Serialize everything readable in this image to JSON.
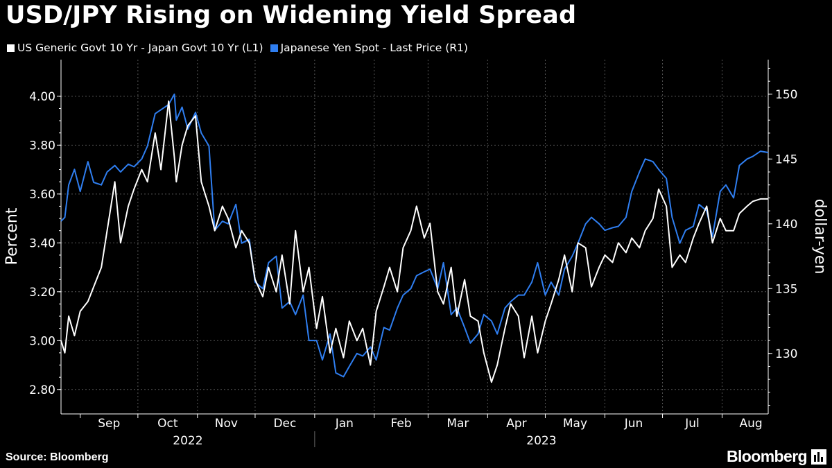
{
  "header": {
    "title": "USD/JPY Rising on Widening Yield Spread"
  },
  "footer": {
    "source": "Source: Bloomberg",
    "brand": "Bloomberg",
    "brand_icon": "bloomberg-bars-icon"
  },
  "colors": {
    "background": "#000000",
    "series_spread": "#ffffff",
    "series_yen": "#2f7ef0",
    "grid": "#555555"
  },
  "chart_data": {
    "type": "line",
    "title": "USD/JPY Rising on Widening Yield Spread",
    "ylabel_left": "Percent",
    "ylabel_right": "dollar-yen",
    "ylim_left": [
      2.7,
      4.15
    ],
    "ylim_right": [
      125.3333,
      152.6667
    ],
    "yticks_left": [
      "2.80",
      "3.00",
      "3.20",
      "3.40",
      "3.60",
      "3.80",
      "4.00"
    ],
    "yticks_right": [
      "130",
      "135",
      "140",
      "145",
      "150"
    ],
    "months": [
      "Sep",
      "Oct",
      "Nov",
      "Dec",
      "Jan",
      "Feb",
      "Mar",
      "Apr",
      "May",
      "Jun",
      "Jul",
      "Aug"
    ],
    "years": [
      "2022",
      "2023"
    ],
    "legend": [
      {
        "name": "US Generic Govt 10 Yr - Japan Govt 10 Yr (L1)",
        "color": "#ffffff"
      },
      {
        "name": "Japanese Yen Spot - Last Price (R1)",
        "color": "#2f7ef0"
      }
    ],
    "x_start": "2022-08-22",
    "x_end": "2023-08-25",
    "series": [
      {
        "name": "US Generic Govt 10 Yr - Japan Govt 10 Yr (L1)",
        "axis": "left",
        "color": "#ffffff",
        "dates": [
          "2022-08-22",
          "2022-08-24",
          "2022-08-26",
          "2022-08-29",
          "2022-09-01",
          "2022-09-05",
          "2022-09-08",
          "2022-09-12",
          "2022-09-15",
          "2022-09-19",
          "2022-09-22",
          "2022-09-26",
          "2022-09-29",
          "2022-10-03",
          "2022-10-06",
          "2022-10-10",
          "2022-10-13",
          "2022-10-17",
          "2022-10-20",
          "2022-10-21",
          "2022-10-24",
          "2022-10-27",
          "2022-10-31",
          "2022-11-03",
          "2022-11-07",
          "2022-11-10",
          "2022-11-14",
          "2022-11-17",
          "2022-11-21",
          "2022-11-24",
          "2022-11-28",
          "2022-12-01",
          "2022-12-05",
          "2022-12-08",
          "2022-12-12",
          "2022-12-15",
          "2022-12-19",
          "2022-12-22",
          "2022-12-26",
          "2022-12-29",
          "2023-01-02",
          "2023-01-05",
          "2023-01-09",
          "2023-01-12",
          "2023-01-16",
          "2023-01-19",
          "2023-01-23",
          "2023-01-26",
          "2023-01-30",
          "2023-02-02",
          "2023-02-06",
          "2023-02-09",
          "2023-02-13",
          "2023-02-16",
          "2023-02-20",
          "2023-02-23",
          "2023-02-27",
          "2023-03-02",
          "2023-03-06",
          "2023-03-09",
          "2023-03-13",
          "2023-03-16",
          "2023-03-20",
          "2023-03-23",
          "2023-03-27",
          "2023-03-30",
          "2023-04-03",
          "2023-04-06",
          "2023-04-10",
          "2023-04-13",
          "2023-04-17",
          "2023-04-20",
          "2023-04-24",
          "2023-04-27",
          "2023-05-01",
          "2023-05-04",
          "2023-05-08",
          "2023-05-11",
          "2023-05-15",
          "2023-05-18",
          "2023-05-22",
          "2023-05-25",
          "2023-05-29",
          "2023-06-01",
          "2023-06-05",
          "2023-06-08",
          "2023-06-12",
          "2023-06-15",
          "2023-06-19",
          "2023-06-22",
          "2023-06-26",
          "2023-06-29",
          "2023-07-03",
          "2023-07-06",
          "2023-07-10",
          "2023-07-13",
          "2023-07-17",
          "2023-07-20",
          "2023-07-24",
          "2023-07-27",
          "2023-07-31",
          "2023-08-03",
          "2023-08-07",
          "2023-08-10",
          "2023-08-14",
          "2023-08-17",
          "2023-08-21",
          "2023-08-25"
        ],
        "values": [
          3.0,
          2.95,
          3.1,
          3.02,
          3.12,
          3.16,
          3.22,
          3.3,
          3.45,
          3.65,
          3.4,
          3.55,
          3.62,
          3.7,
          3.65,
          3.85,
          3.7,
          3.98,
          3.75,
          3.65,
          3.8,
          3.88,
          3.92,
          3.65,
          3.55,
          3.45,
          3.55,
          3.5,
          3.38,
          3.45,
          3.4,
          3.25,
          3.18,
          3.3,
          3.2,
          3.35,
          3.15,
          3.45,
          3.2,
          3.3,
          3.05,
          3.18,
          2.95,
          3.05,
          2.93,
          3.08,
          3.0,
          3.05,
          2.9,
          3.12,
          3.22,
          3.3,
          3.2,
          3.38,
          3.45,
          3.55,
          3.42,
          3.48,
          3.2,
          3.15,
          3.3,
          3.1,
          3.25,
          3.1,
          3.08,
          2.95,
          2.83,
          2.9,
          3.05,
          3.15,
          3.1,
          2.93,
          3.1,
          2.95,
          3.08,
          3.15,
          3.25,
          3.35,
          3.2,
          3.4,
          3.38,
          3.22,
          3.3,
          3.35,
          3.32,
          3.4,
          3.36,
          3.42,
          3.38,
          3.45,
          3.5,
          3.62,
          3.55,
          3.3,
          3.35,
          3.32,
          3.42,
          3.48,
          3.55,
          3.4,
          3.5,
          3.45,
          3.45,
          3.52,
          3.55,
          3.57,
          3.58,
          3.58
        ]
      },
      {
        "name": "Japanese Yen Spot - Last Price (R1)",
        "axis": "right",
        "color": "#2f7ef0",
        "dates": [
          "2022-08-22",
          "2022-08-24",
          "2022-08-26",
          "2022-08-29",
          "2022-09-01",
          "2022-09-05",
          "2022-09-08",
          "2022-09-12",
          "2022-09-15",
          "2022-09-19",
          "2022-09-22",
          "2022-09-26",
          "2022-09-29",
          "2022-10-03",
          "2022-10-06",
          "2022-10-10",
          "2022-10-13",
          "2022-10-17",
          "2022-10-20",
          "2022-10-21",
          "2022-10-24",
          "2022-10-27",
          "2022-10-31",
          "2022-11-03",
          "2022-11-07",
          "2022-11-10",
          "2022-11-14",
          "2022-11-17",
          "2022-11-21",
          "2022-11-24",
          "2022-11-28",
          "2022-12-01",
          "2022-12-05",
          "2022-12-08",
          "2022-12-12",
          "2022-12-15",
          "2022-12-19",
          "2022-12-22",
          "2022-12-26",
          "2022-12-29",
          "2023-01-02",
          "2023-01-05",
          "2023-01-09",
          "2023-01-12",
          "2023-01-16",
          "2023-01-19",
          "2023-01-23",
          "2023-01-26",
          "2023-01-30",
          "2023-02-02",
          "2023-02-06",
          "2023-02-09",
          "2023-02-13",
          "2023-02-16",
          "2023-02-20",
          "2023-02-23",
          "2023-02-27",
          "2023-03-02",
          "2023-03-06",
          "2023-03-09",
          "2023-03-13",
          "2023-03-16",
          "2023-03-20",
          "2023-03-23",
          "2023-03-27",
          "2023-03-30",
          "2023-04-03",
          "2023-04-06",
          "2023-04-10",
          "2023-04-13",
          "2023-04-17",
          "2023-04-20",
          "2023-04-24",
          "2023-04-27",
          "2023-05-01",
          "2023-05-04",
          "2023-05-08",
          "2023-05-11",
          "2023-05-15",
          "2023-05-18",
          "2023-05-22",
          "2023-05-25",
          "2023-05-29",
          "2023-06-01",
          "2023-06-05",
          "2023-06-08",
          "2023-06-12",
          "2023-06-15",
          "2023-06-19",
          "2023-06-22",
          "2023-06-26",
          "2023-06-29",
          "2023-07-03",
          "2023-07-06",
          "2023-07-10",
          "2023-07-13",
          "2023-07-17",
          "2023-07-20",
          "2023-07-24",
          "2023-07-27",
          "2023-07-31",
          "2023-08-03",
          "2023-08-07",
          "2023-08-10",
          "2023-08-14",
          "2023-08-17",
          "2023-08-21",
          "2023-08-25"
        ],
        "values": [
          140.2,
          140.5,
          143.0,
          144.2,
          142.5,
          144.8,
          143.2,
          143.0,
          144.0,
          144.5,
          144.0,
          144.6,
          144.4,
          145.0,
          146.0,
          148.5,
          148.8,
          149.2,
          150.0,
          148.0,
          149.0,
          147.3,
          148.6,
          147.0,
          146.0,
          139.5,
          140.2,
          140.0,
          141.5,
          138.5,
          138.8,
          135.5,
          135.0,
          137.0,
          137.5,
          133.5,
          134.0,
          133.0,
          134.5,
          131.0,
          131.0,
          129.5,
          131.5,
          128.5,
          128.2,
          129.0,
          130.0,
          129.8,
          130.5,
          129.5,
          132.0,
          131.8,
          133.5,
          134.5,
          135.0,
          136.0,
          136.3,
          136.5,
          135.0,
          137.0,
          133.0,
          133.5,
          132.0,
          130.8,
          131.5,
          133.0,
          132.5,
          131.5,
          133.5,
          134.0,
          134.5,
          134.5,
          135.5,
          137.0,
          134.5,
          135.5,
          134.5,
          136.5,
          137.5,
          138.5,
          140.0,
          140.5,
          140.0,
          139.5,
          139.7,
          139.8,
          140.5,
          142.5,
          144.0,
          145.0,
          144.8,
          144.2,
          143.5,
          140.5,
          138.5,
          139.5,
          139.8,
          141.5,
          141.0,
          139.0,
          142.5,
          143.0,
          142.0,
          144.5,
          145.0,
          145.2,
          145.6,
          145.5
        ]
      }
    ]
  }
}
